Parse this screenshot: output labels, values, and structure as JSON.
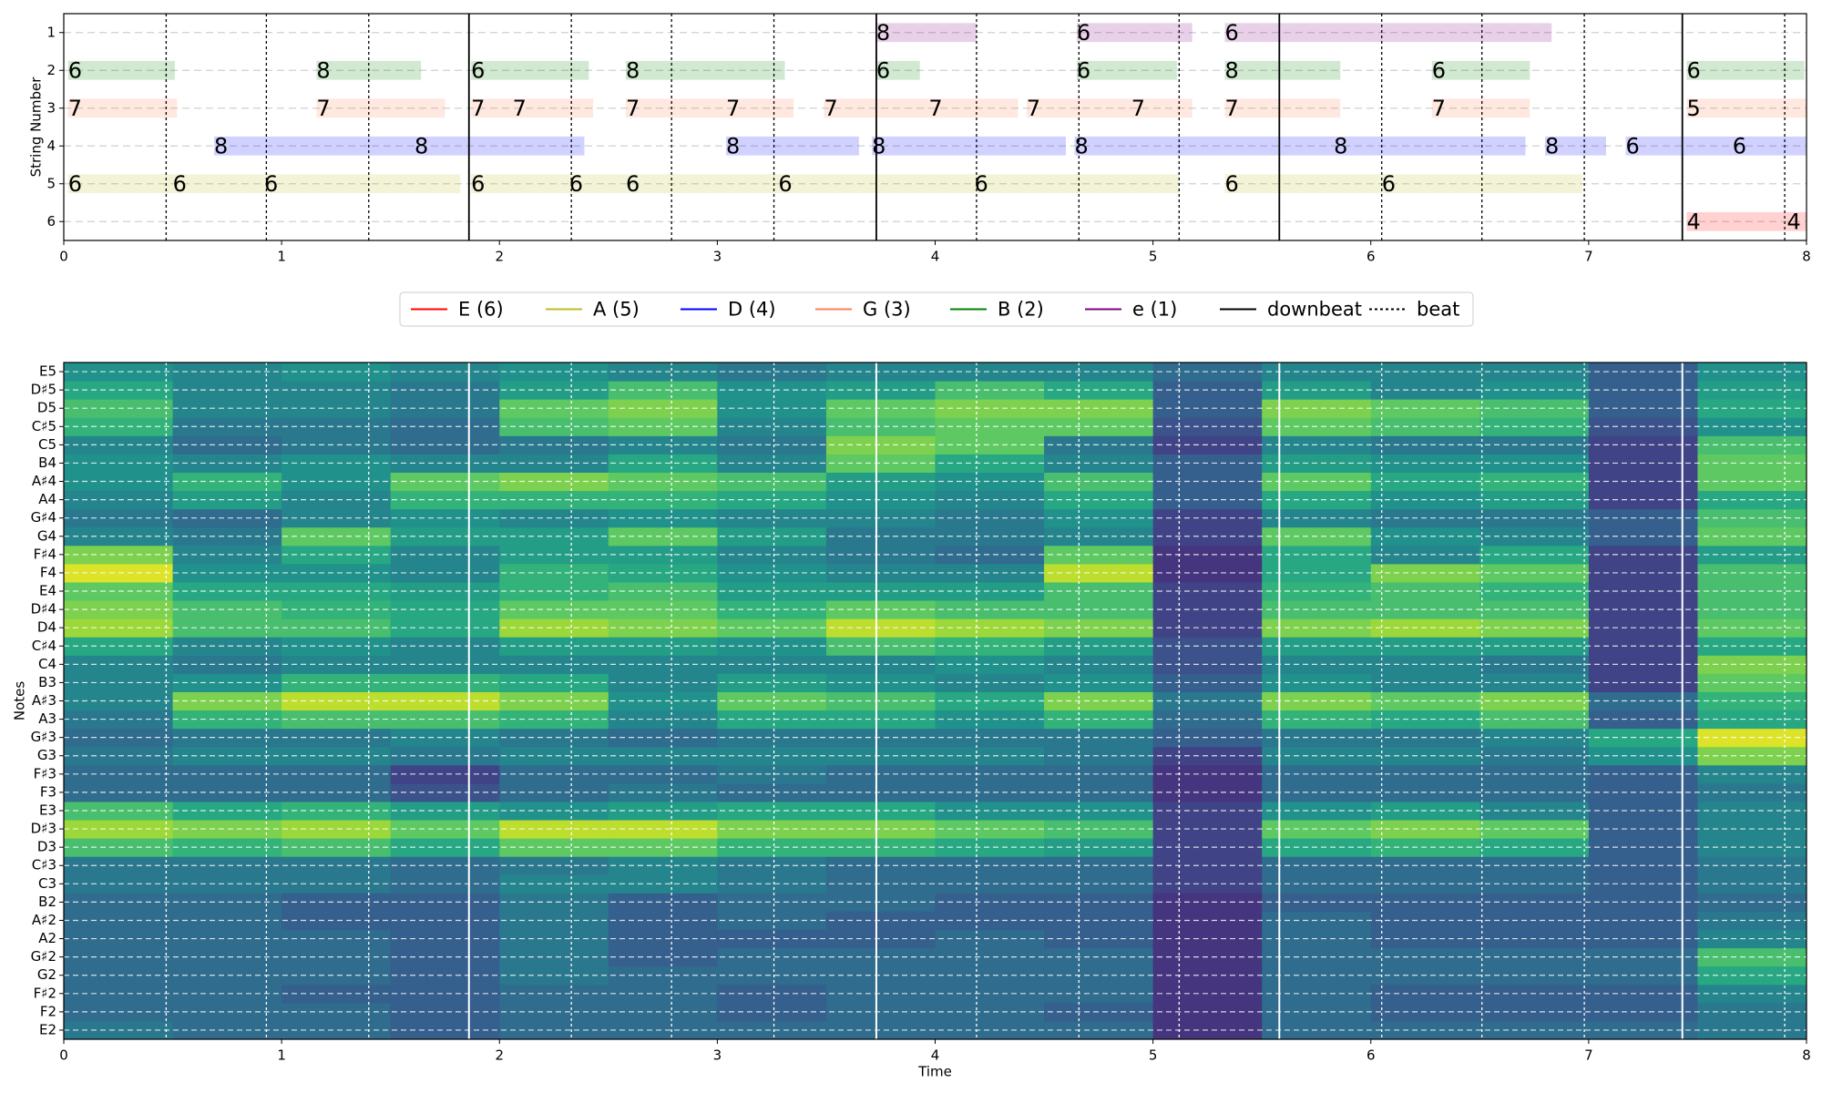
{
  "chart_data": [
    {
      "type": "tab",
      "ylabel": "String Number",
      "xlim": [
        0,
        8
      ],
      "xticks": [
        0,
        1,
        2,
        3,
        4,
        5,
        6,
        7,
        8
      ],
      "ylim": [
        6.5,
        0.5
      ],
      "yticks": [
        1,
        2,
        3,
        4,
        5,
        6
      ],
      "grid": true,
      "series": [
        {
          "name": "E (6)",
          "color": "#ff0000",
          "string": 6,
          "notes": [
            {
              "start": 7.45,
              "end": 7.91,
              "fret": 4
            },
            {
              "start": 7.91,
              "end": 8.0,
              "fret": 4
            }
          ]
        },
        {
          "name": "A (5)",
          "color": "#bcbd22",
          "string": 5,
          "notes": [
            {
              "start": 0.02,
              "end": 0.5,
              "fret": 6
            },
            {
              "start": 0.5,
              "end": 0.92,
              "fret": 6
            },
            {
              "start": 0.92,
              "end": 1.82,
              "fret": 6
            },
            {
              "start": 1.87,
              "end": 2.32,
              "fret": 6
            },
            {
              "start": 2.32,
              "end": 2.58,
              "fret": 6
            },
            {
              "start": 2.58,
              "end": 3.28,
              "fret": 6
            },
            {
              "start": 3.28,
              "end": 4.18,
              "fret": 6
            },
            {
              "start": 4.18,
              "end": 5.12,
              "fret": 6
            },
            {
              "start": 5.33,
              "end": 6.05,
              "fret": 6
            },
            {
              "start": 6.05,
              "end": 6.97,
              "fret": 6
            }
          ]
        },
        {
          "name": "D (4)",
          "color": "#0000ff",
          "string": 4,
          "notes": [
            {
              "start": 0.69,
              "end": 1.61,
              "fret": 8
            },
            {
              "start": 1.61,
              "end": 2.39,
              "fret": 8
            },
            {
              "start": 3.04,
              "end": 3.65,
              "fret": 8
            },
            {
              "start": 3.71,
              "end": 4.6,
              "fret": 8
            },
            {
              "start": 4.64,
              "end": 5.83,
              "fret": 8
            },
            {
              "start": 5.83,
              "end": 6.71,
              "fret": 8
            },
            {
              "start": 6.8,
              "end": 7.08,
              "fret": 8
            },
            {
              "start": 7.17,
              "end": 7.66,
              "fret": 6
            },
            {
              "start": 7.66,
              "end": 8.0,
              "fret": 6
            }
          ]
        },
        {
          "name": "G (3)",
          "color": "#ff7f50",
          "string": 3,
          "notes": [
            {
              "start": 0.02,
              "end": 0.52,
              "fret": 7
            },
            {
              "start": 1.16,
              "end": 1.75,
              "fret": 7
            },
            {
              "start": 1.87,
              "end": 2.06,
              "fret": 7
            },
            {
              "start": 2.06,
              "end": 2.43,
              "fret": 7
            },
            {
              "start": 2.58,
              "end": 3.04,
              "fret": 7
            },
            {
              "start": 3.04,
              "end": 3.35,
              "fret": 7
            },
            {
              "start": 3.49,
              "end": 3.97,
              "fret": 7
            },
            {
              "start": 3.97,
              "end": 4.38,
              "fret": 7
            },
            {
              "start": 4.42,
              "end": 4.9,
              "fret": 7
            },
            {
              "start": 4.9,
              "end": 5.18,
              "fret": 7
            },
            {
              "start": 5.33,
              "end": 5.86,
              "fret": 7
            },
            {
              "start": 6.28,
              "end": 6.73,
              "fret": 7
            },
            {
              "start": 7.45,
              "end": 8.0,
              "fret": 5
            }
          ]
        },
        {
          "name": "B (2)",
          "color": "#008000",
          "string": 2,
          "notes": [
            {
              "start": 0.02,
              "end": 0.51,
              "fret": 6
            },
            {
              "start": 1.16,
              "end": 1.64,
              "fret": 8
            },
            {
              "start": 1.87,
              "end": 2.41,
              "fret": 6
            },
            {
              "start": 2.58,
              "end": 3.31,
              "fret": 8
            },
            {
              "start": 3.73,
              "end": 3.93,
              "fret": 6
            },
            {
              "start": 4.65,
              "end": 5.11,
              "fret": 6
            },
            {
              "start": 5.33,
              "end": 5.86,
              "fret": 8
            },
            {
              "start": 6.28,
              "end": 6.73,
              "fret": 6
            },
            {
              "start": 7.45,
              "end": 7.99,
              "fret": 6
            }
          ]
        },
        {
          "name": "e (1)",
          "color": "#800080",
          "string": 1,
          "notes": [
            {
              "start": 3.73,
              "end": 4.19,
              "fret": 8
            },
            {
              "start": 4.65,
              "end": 5.18,
              "fret": 6
            },
            {
              "start": 5.33,
              "end": 6.83,
              "fret": 6
            }
          ]
        }
      ],
      "downbeats": {
        "name": "downbeat",
        "color": "#000000",
        "values": [
          1.86,
          3.73,
          5.58,
          7.43
        ]
      },
      "beats": {
        "name": "beat",
        "color": "#000000",
        "values": [
          0.47,
          0.93,
          1.4,
          2.33,
          2.79,
          3.26,
          4.19,
          4.66,
          5.12,
          6.05,
          6.51,
          6.98,
          7.9
        ]
      }
    },
    {
      "type": "heatmap",
      "xlabel": "Time",
      "ylabel": "Notes",
      "cmap": "viridis",
      "clim": [
        0,
        1
      ],
      "xlim": [
        0,
        8
      ],
      "xticks": [
        0,
        1,
        2,
        3,
        4,
        5,
        6,
        7,
        8
      ],
      "xbins": [
        0,
        0.5,
        1,
        1.5,
        2,
        2.5,
        3,
        3.5,
        4,
        4.5,
        5,
        5.5,
        6,
        6.5,
        7,
        7.5,
        8
      ],
      "categories": [
        "E2",
        "F2",
        "F♯2",
        "G2",
        "G♯2",
        "A2",
        "A♯2",
        "B2",
        "C3",
        "C♯3",
        "D3",
        "D♯3",
        "E3",
        "F3",
        "F♯3",
        "G3",
        "G♯3",
        "A3",
        "A♯3",
        "B3",
        "C4",
        "C♯4",
        "D4",
        "D♯4",
        "E4",
        "F4",
        "F♯4",
        "G4",
        "G♯4",
        "A4",
        "A♯4",
        "B4",
        "C5",
        "C♯5",
        "D5",
        "D♯5",
        "E5"
      ],
      "values": [
        [
          0.4,
          0.35,
          0.35,
          0.3,
          0.35,
          0.35,
          0.35,
          0.35,
          0.35,
          0.35,
          0.15,
          0.35,
          0.35,
          0.35,
          0.35,
          0.4
        ],
        [
          0.35,
          0.35,
          0.35,
          0.3,
          0.35,
          0.35,
          0.3,
          0.35,
          0.35,
          0.3,
          0.15,
          0.35,
          0.3,
          0.3,
          0.3,
          0.4
        ],
        [
          0.35,
          0.35,
          0.3,
          0.3,
          0.35,
          0.35,
          0.3,
          0.35,
          0.35,
          0.35,
          0.15,
          0.35,
          0.3,
          0.3,
          0.3,
          0.45
        ],
        [
          0.35,
          0.35,
          0.35,
          0.3,
          0.4,
          0.35,
          0.35,
          0.35,
          0.35,
          0.35,
          0.15,
          0.35,
          0.35,
          0.35,
          0.35,
          0.6
        ],
        [
          0.35,
          0.35,
          0.35,
          0.3,
          0.4,
          0.3,
          0.35,
          0.35,
          0.35,
          0.35,
          0.15,
          0.35,
          0.35,
          0.35,
          0.35,
          0.7
        ],
        [
          0.35,
          0.35,
          0.35,
          0.3,
          0.4,
          0.3,
          0.3,
          0.3,
          0.35,
          0.3,
          0.15,
          0.35,
          0.3,
          0.3,
          0.3,
          0.45
        ],
        [
          0.35,
          0.35,
          0.3,
          0.3,
          0.4,
          0.3,
          0.35,
          0.3,
          0.3,
          0.3,
          0.15,
          0.35,
          0.3,
          0.3,
          0.3,
          0.4
        ],
        [
          0.35,
          0.35,
          0.3,
          0.3,
          0.4,
          0.3,
          0.35,
          0.35,
          0.3,
          0.3,
          0.15,
          0.3,
          0.3,
          0.3,
          0.3,
          0.35
        ],
        [
          0.4,
          0.4,
          0.4,
          0.35,
          0.45,
          0.45,
          0.4,
          0.35,
          0.35,
          0.35,
          0.2,
          0.35,
          0.35,
          0.35,
          0.3,
          0.4
        ],
        [
          0.4,
          0.4,
          0.4,
          0.35,
          0.4,
          0.45,
          0.4,
          0.35,
          0.35,
          0.35,
          0.2,
          0.35,
          0.35,
          0.35,
          0.3,
          0.4
        ],
        [
          0.7,
          0.65,
          0.7,
          0.6,
          0.75,
          0.75,
          0.65,
          0.65,
          0.6,
          0.55,
          0.2,
          0.6,
          0.65,
          0.6,
          0.3,
          0.45
        ],
        [
          0.85,
          0.8,
          0.85,
          0.75,
          0.9,
          0.9,
          0.8,
          0.8,
          0.75,
          0.7,
          0.2,
          0.75,
          0.8,
          0.75,
          0.3,
          0.45
        ],
        [
          0.7,
          0.6,
          0.65,
          0.55,
          0.5,
          0.55,
          0.6,
          0.6,
          0.5,
          0.5,
          0.2,
          0.5,
          0.55,
          0.45,
          0.3,
          0.45
        ],
        [
          0.35,
          0.35,
          0.35,
          0.25,
          0.35,
          0.4,
          0.35,
          0.35,
          0.35,
          0.35,
          0.15,
          0.35,
          0.35,
          0.35,
          0.3,
          0.4
        ],
        [
          0.35,
          0.35,
          0.35,
          0.2,
          0.35,
          0.35,
          0.4,
          0.35,
          0.35,
          0.35,
          0.15,
          0.35,
          0.35,
          0.35,
          0.3,
          0.45
        ],
        [
          0.4,
          0.45,
          0.45,
          0.4,
          0.45,
          0.45,
          0.45,
          0.45,
          0.45,
          0.4,
          0.2,
          0.45,
          0.45,
          0.4,
          0.5,
          0.8
        ],
        [
          0.35,
          0.4,
          0.4,
          0.45,
          0.4,
          0.35,
          0.4,
          0.4,
          0.4,
          0.4,
          0.3,
          0.4,
          0.4,
          0.45,
          0.6,
          0.95
        ],
        [
          0.4,
          0.65,
          0.7,
          0.7,
          0.65,
          0.45,
          0.6,
          0.6,
          0.5,
          0.65,
          0.35,
          0.65,
          0.6,
          0.7,
          0.3,
          0.6
        ],
        [
          0.45,
          0.8,
          0.9,
          0.9,
          0.8,
          0.5,
          0.75,
          0.7,
          0.6,
          0.8,
          0.4,
          0.8,
          0.75,
          0.8,
          0.35,
          0.65
        ],
        [
          0.45,
          0.5,
          0.65,
          0.65,
          0.6,
          0.45,
          0.55,
          0.5,
          0.45,
          0.5,
          0.3,
          0.5,
          0.45,
          0.45,
          0.2,
          0.75
        ],
        [
          0.45,
          0.4,
          0.45,
          0.45,
          0.45,
          0.45,
          0.45,
          0.45,
          0.5,
          0.45,
          0.25,
          0.45,
          0.45,
          0.4,
          0.2,
          0.8
        ],
        [
          0.6,
          0.45,
          0.5,
          0.45,
          0.55,
          0.55,
          0.5,
          0.7,
          0.65,
          0.55,
          0.25,
          0.55,
          0.55,
          0.55,
          0.2,
          0.6
        ],
        [
          0.85,
          0.7,
          0.7,
          0.6,
          0.85,
          0.8,
          0.75,
          0.9,
          0.85,
          0.8,
          0.2,
          0.8,
          0.85,
          0.8,
          0.2,
          0.75
        ],
        [
          0.8,
          0.7,
          0.65,
          0.6,
          0.75,
          0.75,
          0.65,
          0.75,
          0.7,
          0.7,
          0.2,
          0.7,
          0.7,
          0.7,
          0.2,
          0.7
        ],
        [
          0.75,
          0.6,
          0.6,
          0.55,
          0.65,
          0.7,
          0.55,
          0.55,
          0.55,
          0.7,
          0.2,
          0.65,
          0.7,
          0.65,
          0.2,
          0.7
        ],
        [
          0.95,
          0.5,
          0.5,
          0.45,
          0.65,
          0.6,
          0.5,
          0.45,
          0.45,
          0.9,
          0.15,
          0.6,
          0.8,
          0.75,
          0.2,
          0.7
        ],
        [
          0.8,
          0.45,
          0.6,
          0.45,
          0.55,
          0.55,
          0.45,
          0.4,
          0.35,
          0.75,
          0.15,
          0.6,
          0.45,
          0.6,
          0.2,
          0.55
        ],
        [
          0.45,
          0.4,
          0.75,
          0.55,
          0.55,
          0.75,
          0.55,
          0.4,
          0.4,
          0.45,
          0.2,
          0.75,
          0.5,
          0.45,
          0.3,
          0.75
        ],
        [
          0.4,
          0.35,
          0.45,
          0.5,
          0.45,
          0.5,
          0.45,
          0.45,
          0.4,
          0.5,
          0.2,
          0.45,
          0.4,
          0.4,
          0.3,
          0.7
        ],
        [
          0.45,
          0.55,
          0.45,
          0.65,
          0.65,
          0.65,
          0.6,
          0.5,
          0.45,
          0.6,
          0.3,
          0.6,
          0.5,
          0.55,
          0.2,
          0.6
        ],
        [
          0.5,
          0.65,
          0.5,
          0.75,
          0.8,
          0.75,
          0.7,
          0.55,
          0.5,
          0.7,
          0.3,
          0.75,
          0.6,
          0.65,
          0.2,
          0.75
        ],
        [
          0.5,
          0.45,
          0.5,
          0.45,
          0.45,
          0.6,
          0.45,
          0.75,
          0.6,
          0.45,
          0.3,
          0.55,
          0.5,
          0.5,
          0.2,
          0.75
        ],
        [
          0.45,
          0.35,
          0.4,
          0.35,
          0.4,
          0.45,
          0.4,
          0.8,
          0.75,
          0.4,
          0.2,
          0.45,
          0.4,
          0.4,
          0.2,
          0.7
        ],
        [
          0.65,
          0.4,
          0.4,
          0.35,
          0.7,
          0.75,
          0.45,
          0.7,
          0.75,
          0.75,
          0.25,
          0.75,
          0.7,
          0.65,
          0.25,
          0.5
        ],
        [
          0.7,
          0.45,
          0.45,
          0.4,
          0.75,
          0.8,
          0.5,
          0.75,
          0.8,
          0.8,
          0.3,
          0.8,
          0.75,
          0.7,
          0.3,
          0.6
        ],
        [
          0.6,
          0.45,
          0.45,
          0.4,
          0.55,
          0.7,
          0.5,
          0.55,
          0.7,
          0.6,
          0.3,
          0.55,
          0.45,
          0.5,
          0.3,
          0.55
        ],
        [
          0.5,
          0.45,
          0.5,
          0.45,
          0.5,
          0.45,
          0.4,
          0.45,
          0.45,
          0.45,
          0.35,
          0.45,
          0.45,
          0.45,
          0.3,
          0.5
        ]
      ]
    }
  ]
}
